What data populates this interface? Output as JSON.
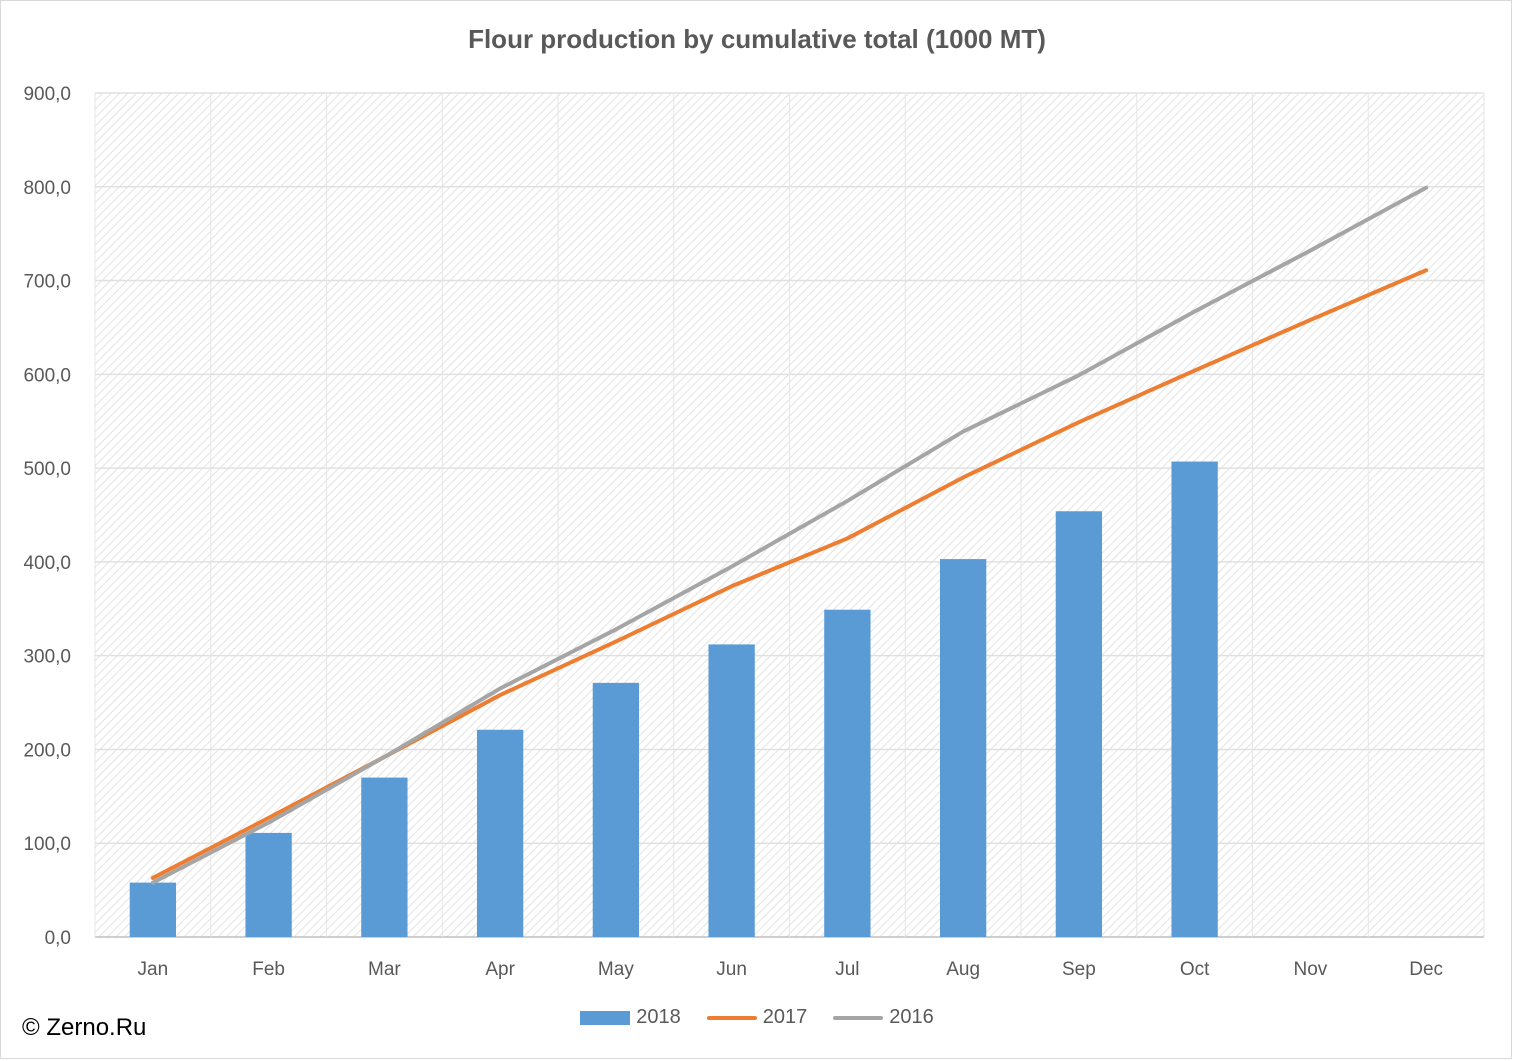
{
  "chart_data": {
    "type": "bar",
    "title": "Flour production by cumulative total (1000 MT)",
    "categories": [
      "Jan",
      "Feb",
      "Mar",
      "Apr",
      "May",
      "Jun",
      "Jul",
      "Aug",
      "Sep",
      "Oct",
      "Nov",
      "Dec"
    ],
    "ylim": [
      0,
      900
    ],
    "yticks": [
      0,
      100,
      200,
      300,
      400,
      500,
      600,
      700,
      800,
      900
    ],
    "ytick_labels": [
      "0,0",
      "100,0",
      "200,0",
      "300,0",
      "400,0",
      "500,0",
      "600,0",
      "700,0",
      "800,0",
      "900,0"
    ],
    "grid": true,
    "legend_position": "bottom",
    "series": [
      {
        "name": "2018",
        "kind": "bar",
        "color": "#5b9bd5",
        "values": [
          58,
          111,
          170,
          221,
          271,
          312,
          349,
          403,
          454,
          507,
          null,
          null
        ]
      },
      {
        "name": "2017",
        "kind": "line",
        "color": "#ed7d31",
        "values": [
          63,
          127,
          192,
          258,
          315,
          374,
          425,
          490,
          549,
          604,
          658,
          711
        ]
      },
      {
        "name": "2016",
        "kind": "line",
        "color": "#a5a5a5",
        "values": [
          58,
          122,
          192,
          265,
          328,
          395,
          465,
          539,
          599,
          667,
          732,
          799
        ]
      }
    ]
  },
  "credit": "© Zerno.Ru"
}
